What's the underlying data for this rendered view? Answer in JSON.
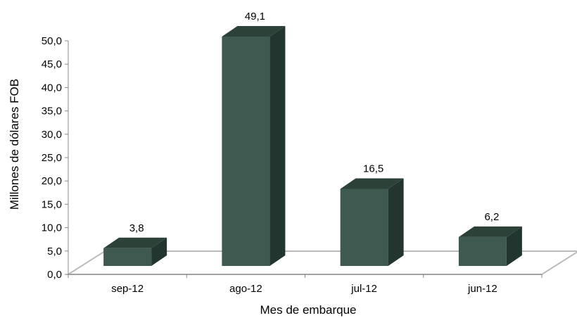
{
  "chart_data": {
    "type": "bar",
    "categories": [
      "sep-12",
      "ago-12",
      "jul-12",
      "jun-12"
    ],
    "values": [
      3.8,
      49.1,
      16.5,
      6.2
    ],
    "value_labels": [
      "3,8",
      "49,1",
      "16,5",
      "6,2"
    ],
    "y_ticks": [
      "0,0",
      "5,0",
      "10,0",
      "15,0",
      "20,0",
      "25,0",
      "30,0",
      "35,0",
      "40,0",
      "45,0",
      "50,0"
    ],
    "ylim": [
      0,
      50
    ],
    "xlabel": "Mes de embarque",
    "ylabel": "Millones de dólares FOB",
    "grid": false,
    "legend": "none",
    "colors": {
      "bar_front": "#3e5a50",
      "bar_side": "#22362f",
      "bar_top": "#2c4239",
      "floor": "#bbbbbb",
      "axis": "#888888"
    }
  }
}
